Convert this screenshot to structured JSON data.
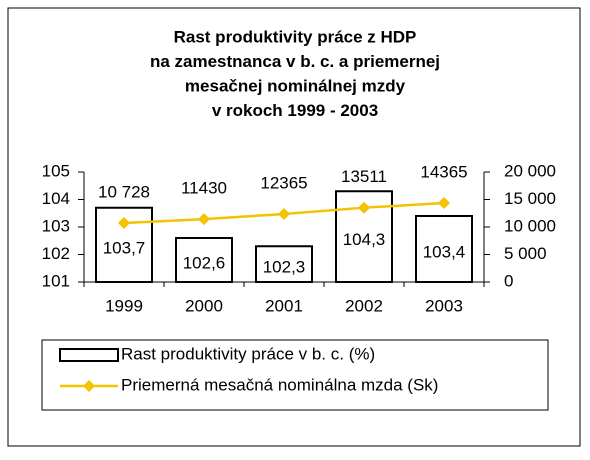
{
  "chart_data": {
    "type": "combo",
    "title": [
      "Rast produktivity práce z HDP",
      "na zamestnanca v b. c. a priemernej",
      "mesačnej nominálnej mzdy",
      "v rokoch 1999 - 2003"
    ],
    "categories": [
      "1999",
      "2000",
      "2001",
      "2002",
      "2003"
    ],
    "series": [
      {
        "name": "Rast produktivity práce v b. c. (%)",
        "type": "bar",
        "axis": "y",
        "color": "#ffffff",
        "values": [
          103.7,
          102.6,
          102.3,
          104.3,
          103.4
        ],
        "value_labels": [
          "103,7",
          "102,6",
          "102,3",
          "104,3",
          "103,4"
        ]
      },
      {
        "name": "Priemerná mesačná nominálna mzda (Sk)",
        "type": "line",
        "axis": "y2",
        "color": "#f5c200",
        "values": [
          10728,
          11430,
          12365,
          13511,
          14365
        ],
        "value_labels": [
          "10 728",
          "11430",
          "12365",
          "13511",
          "14365"
        ]
      }
    ],
    "ylim": [
      101,
      105
    ],
    "yticks": [
      101,
      102,
      103,
      104,
      105
    ],
    "y2lim": [
      0,
      20000
    ],
    "y2ticks": [
      0,
      {
        "value": 5000,
        "label": "5 000"
      },
      {
        "value": 10000,
        "label": "10 000"
      },
      {
        "value": 15000,
        "label": "15 000"
      },
      {
        "value": 20000,
        "label": "20 000"
      }
    ],
    "legend": "bottom"
  }
}
